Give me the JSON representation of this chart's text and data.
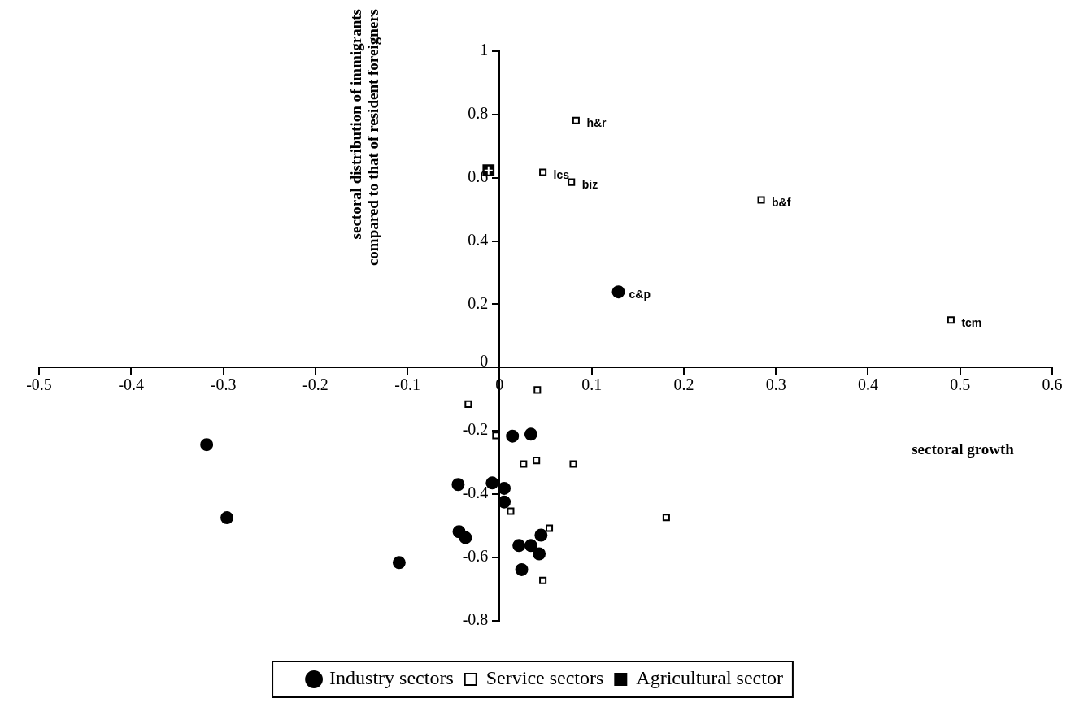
{
  "chart_data": {
    "type": "scatter",
    "xlabel": "sectoral growth",
    "ylabel": "sectoral distribution of immigrants compared to that of resident foreigners",
    "xlim": [
      -0.5,
      0.6
    ],
    "xticks": [
      -0.5,
      -0.4,
      -0.3,
      -0.2,
      -0.1,
      0,
      0.1,
      0.2,
      0.3,
      0.4,
      0.5,
      0.6
    ],
    "ylim": [
      -0.8,
      1
    ],
    "yticks": [
      -0.8,
      -0.6,
      -0.4,
      -0.2,
      0,
      0.2,
      0.4,
      0.6,
      0.8,
      1
    ],
    "grid": false,
    "legend": "bottom",
    "series": [
      {
        "name": "Industry sectors",
        "color": "#000000",
        "marker": "circle",
        "x": [
          -0.318,
          -0.296,
          -0.109,
          0.129,
          0.014,
          0.034,
          -0.045,
          -0.008,
          0.005,
          0.005,
          -0.044,
          -0.037,
          0.021,
          0.034,
          0.045,
          0.043,
          0.024
        ],
        "values": [
          -0.244,
          -0.475,
          -0.617,
          0.239,
          -0.217,
          -0.211,
          -0.37,
          -0.365,
          -0.382,
          -0.425,
          -0.519,
          -0.538,
          -0.563,
          -0.563,
          -0.53,
          -0.589,
          -0.639
        ]
      },
      {
        "name": "Service sectors",
        "color": "#ffffff",
        "marker": "square",
        "x": [
          0.083,
          0.047,
          0.078,
          0.284,
          0.49,
          0.041,
          -0.034,
          -0.004,
          0.026,
          0.04,
          0.08,
          0.012,
          0.181,
          0.054,
          0.047
        ],
        "values": [
          0.781,
          0.617,
          0.586,
          0.53,
          0.15,
          -0.071,
          -0.116,
          -0.215,
          -0.305,
          -0.294,
          -0.305,
          -0.454,
          -0.474,
          -0.508,
          -0.673
        ]
      },
      {
        "name": "Agricultural sector",
        "color": "#000000",
        "marker": "square",
        "x": [
          -0.012
        ],
        "values": [
          0.623
        ]
      }
    ],
    "annotations": [
      {
        "text": "h&r",
        "x": 0.083,
        "y": 0.781
      },
      {
        "text": "lcs",
        "x": 0.047,
        "y": 0.617
      },
      {
        "text": "biz",
        "x": 0.078,
        "y": 0.586
      },
      {
        "text": "b&f",
        "x": 0.284,
        "y": 0.53
      },
      {
        "text": "c&p",
        "x": 0.129,
        "y": 0.239
      },
      {
        "text": "tcm",
        "x": 0.49,
        "y": 0.15
      }
    ]
  }
}
